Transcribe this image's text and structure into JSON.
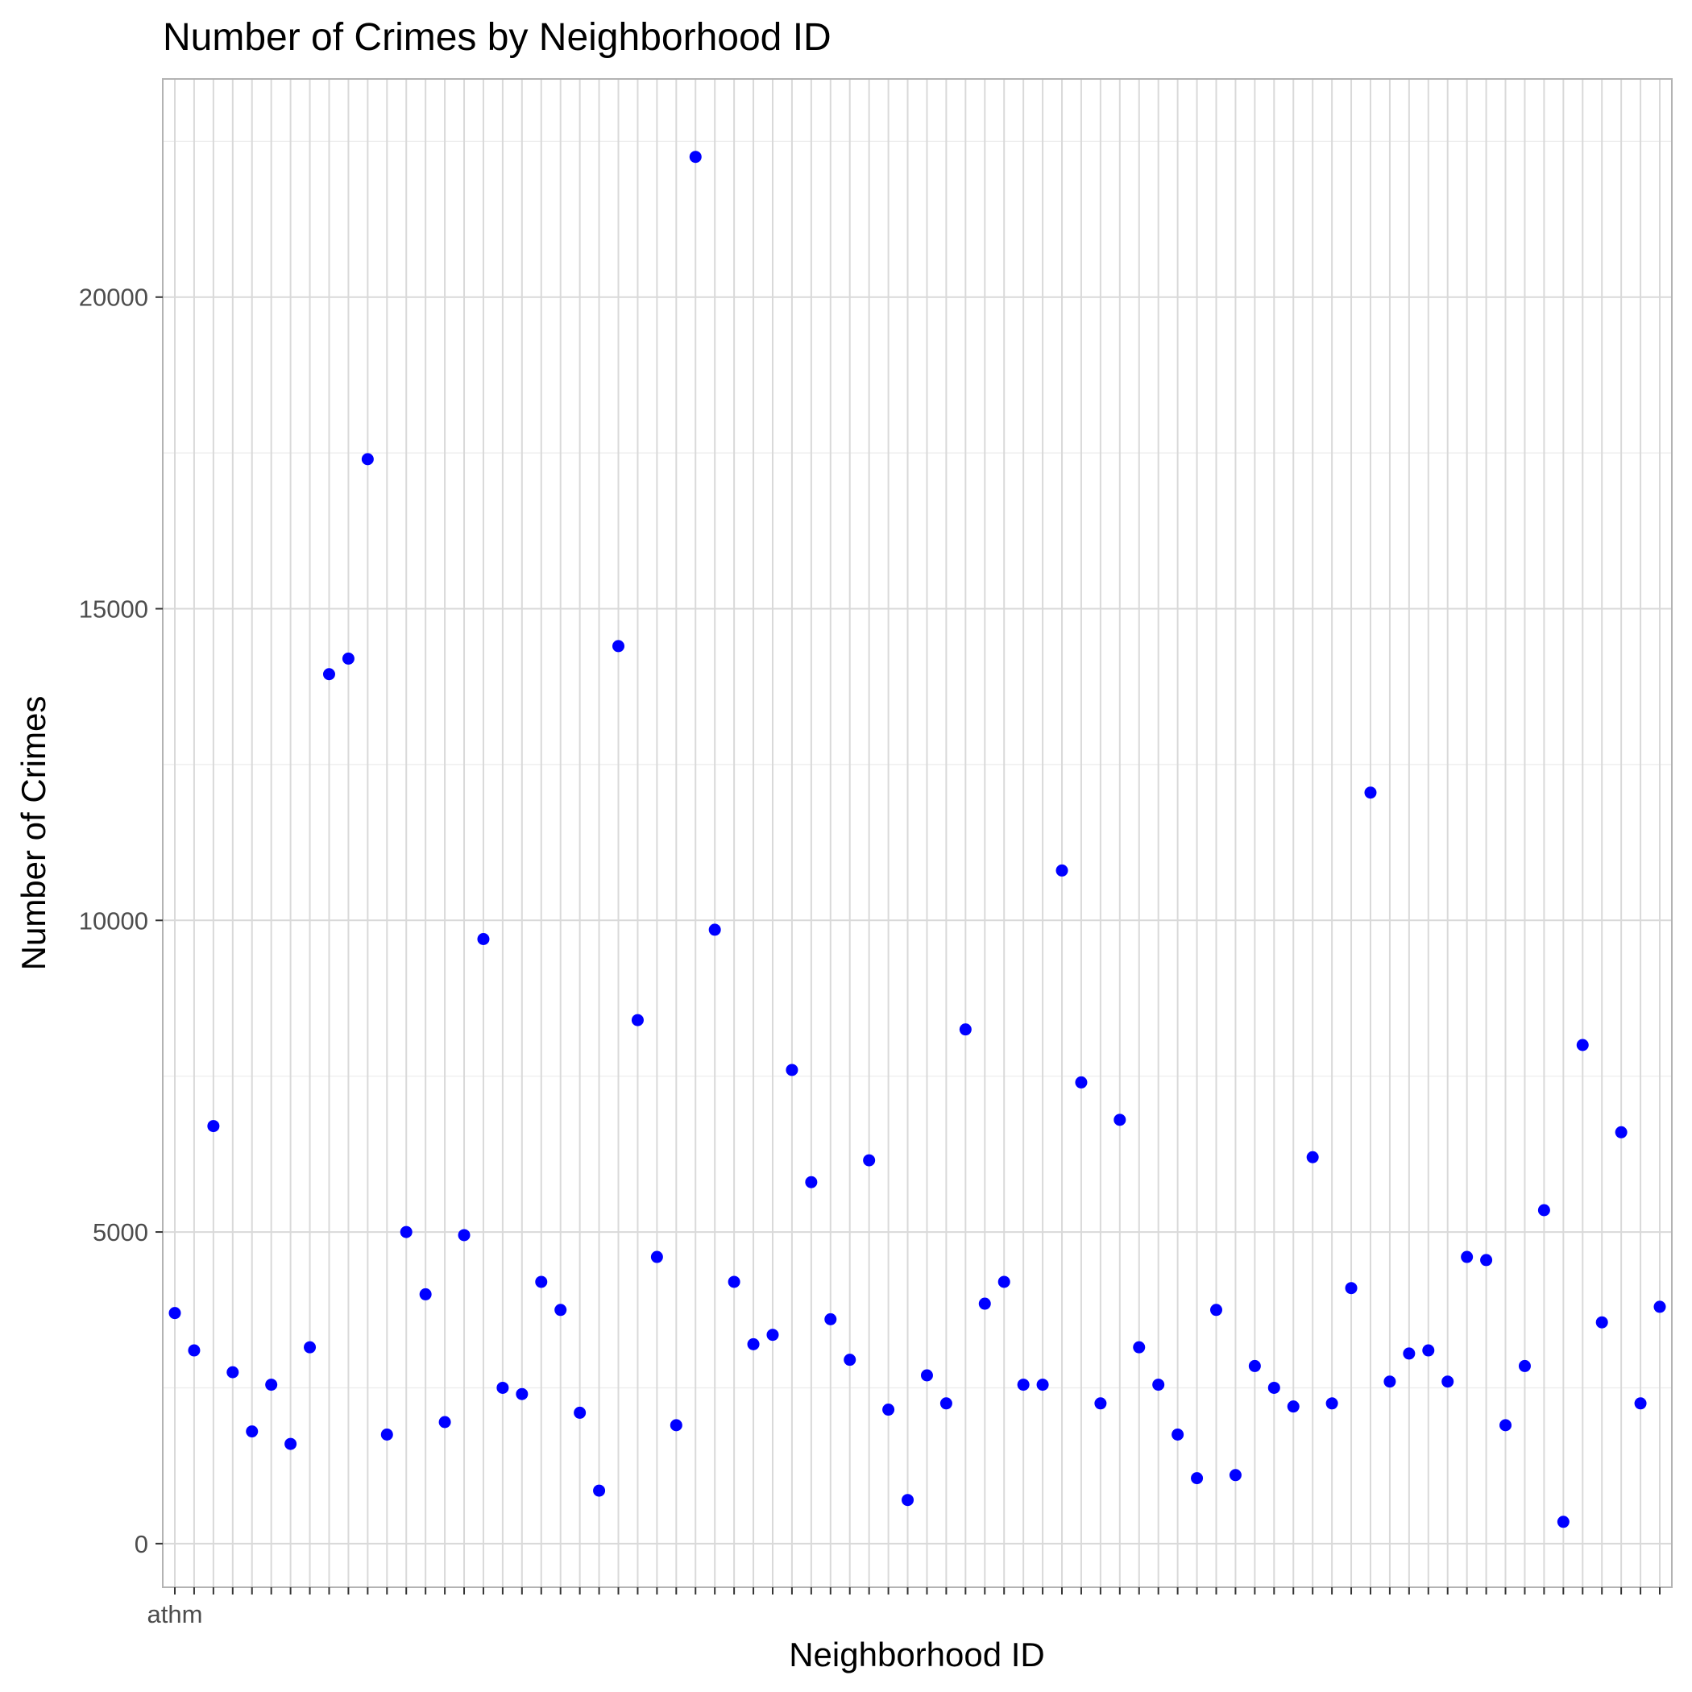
{
  "chart_data": {
    "type": "scatter",
    "title": "Number of Crimes by Neighborhood ID",
    "xlabel": "Neighborhood ID",
    "ylabel": "Number of Crimes",
    "ylim": [
      -700,
      23500
    ],
    "yticks": [
      0,
      5000,
      10000,
      15000,
      20000
    ],
    "grid": true,
    "first_category_label": "athm",
    "point_color": "#0000ff",
    "panel_border_color": "#b3b3b3",
    "grid_major_color": "#d9d9d9",
    "grid_minor_color": "#ececec",
    "values": [
      3700,
      3100,
      6700,
      2750,
      1800,
      2550,
      1600,
      3150,
      13950,
      14200,
      17400,
      1750,
      5000,
      4000,
      1950,
      4950,
      9700,
      2500,
      2400,
      4200,
      3750,
      2100,
      850,
      14400,
      8400,
      4600,
      1900,
      22250,
      9850,
      4200,
      3200,
      3350,
      7600,
      5800,
      3600,
      2950,
      6150,
      2150,
      700,
      2700,
      2250,
      8250,
      3850,
      4200,
      2550,
      2550,
      10800,
      7400,
      2250,
      6800,
      3150,
      2550,
      1750,
      1050,
      3750,
      1100,
      2850,
      2500,
      2200,
      6200,
      2250,
      4100,
      12050,
      2600,
      3050,
      3100,
      2600,
      4600,
      4550,
      1900,
      2850,
      5350,
      350,
      8000,
      3550,
      6600,
      2250,
      3800
    ]
  }
}
